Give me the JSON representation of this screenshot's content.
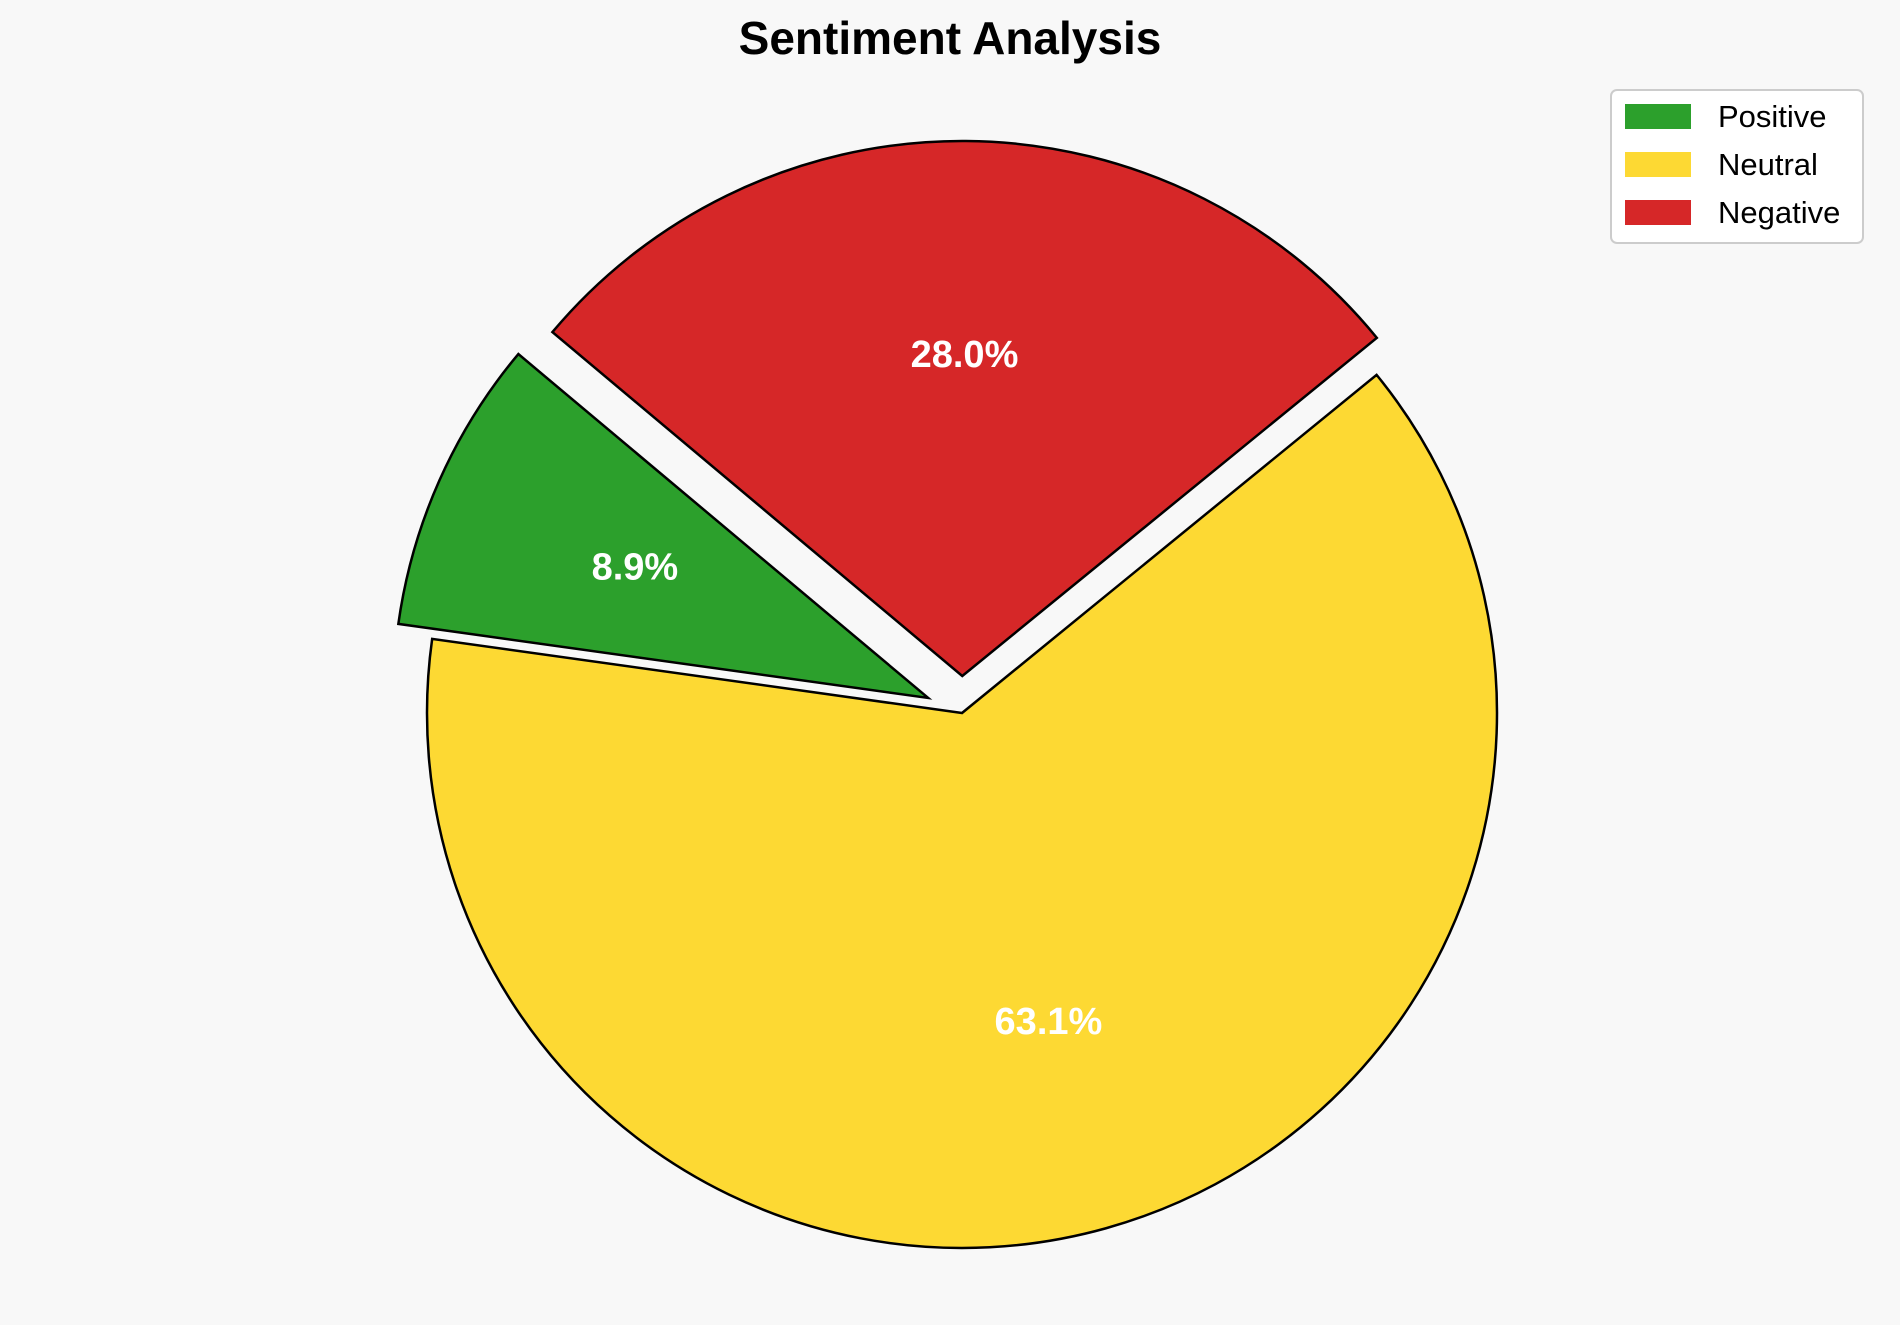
{
  "chart_data": {
    "type": "pie",
    "title": "Sentiment Analysis",
    "slices": [
      {
        "label": "Positive",
        "value": 8.9,
        "display": "8.9%",
        "color": "#2ca02c",
        "exploded": true
      },
      {
        "label": "Neutral",
        "value": 63.1,
        "display": "63.1%",
        "color": "#fdd933",
        "exploded": false
      },
      {
        "label": "Negative",
        "value": 28.0,
        "display": "28.0%",
        "color": "#d62728",
        "exploded": true
      }
    ],
    "legend": {
      "placement": "top-right",
      "entries": [
        "Positive",
        "Neutral",
        "Negative"
      ]
    },
    "edge_color": "#000000",
    "label_color": "#ffffff",
    "background": "#f8f8f8"
  }
}
